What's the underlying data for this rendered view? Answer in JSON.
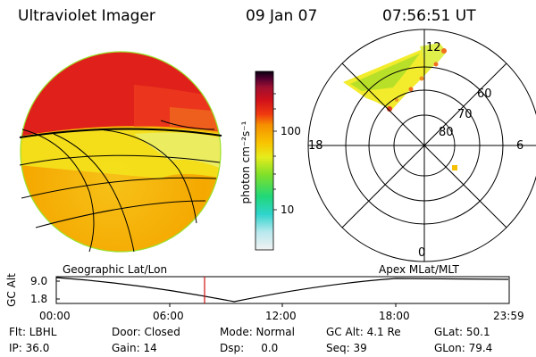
{
  "header": {
    "title": "Ultraviolet Imager",
    "date": "09 Jan 07",
    "time": "07:56:51 UT"
  },
  "colorbar": {
    "unit_label": "photon cm⁻²s⁻¹",
    "ticks": [
      "100",
      "10"
    ]
  },
  "polar": {
    "lat_labels": [
      "60",
      "70",
      "80"
    ],
    "mlt_labels": [
      "12",
      "18",
      "6",
      "0"
    ]
  },
  "timeline": {
    "left_title": "Geographic Lat/Lon",
    "right_title": "Apex  MLat/MLT",
    "y_label": "GC Alt",
    "y_ticks": [
      "9.0",
      "1.8"
    ],
    "x_ticks": [
      "00:00",
      "06:00",
      "12:00",
      "18:00",
      "23:59"
    ]
  },
  "footer": {
    "row1": [
      "Flt: LBHL",
      "Door: Closed",
      "Mode: Normal",
      "GC Alt: 4.1 Re",
      "GLat: 50.1"
    ],
    "row2": [
      "IP: 36.0",
      "Gain: 14",
      "Dsp:     0.0",
      "Seq: 39",
      "GLon: 79.4"
    ]
  },
  "colors": {
    "red": "#e0201a",
    "orange": "#f7a400",
    "yellow": "#f4e81c",
    "green": "#9be02a",
    "marker": "#d01010"
  }
}
